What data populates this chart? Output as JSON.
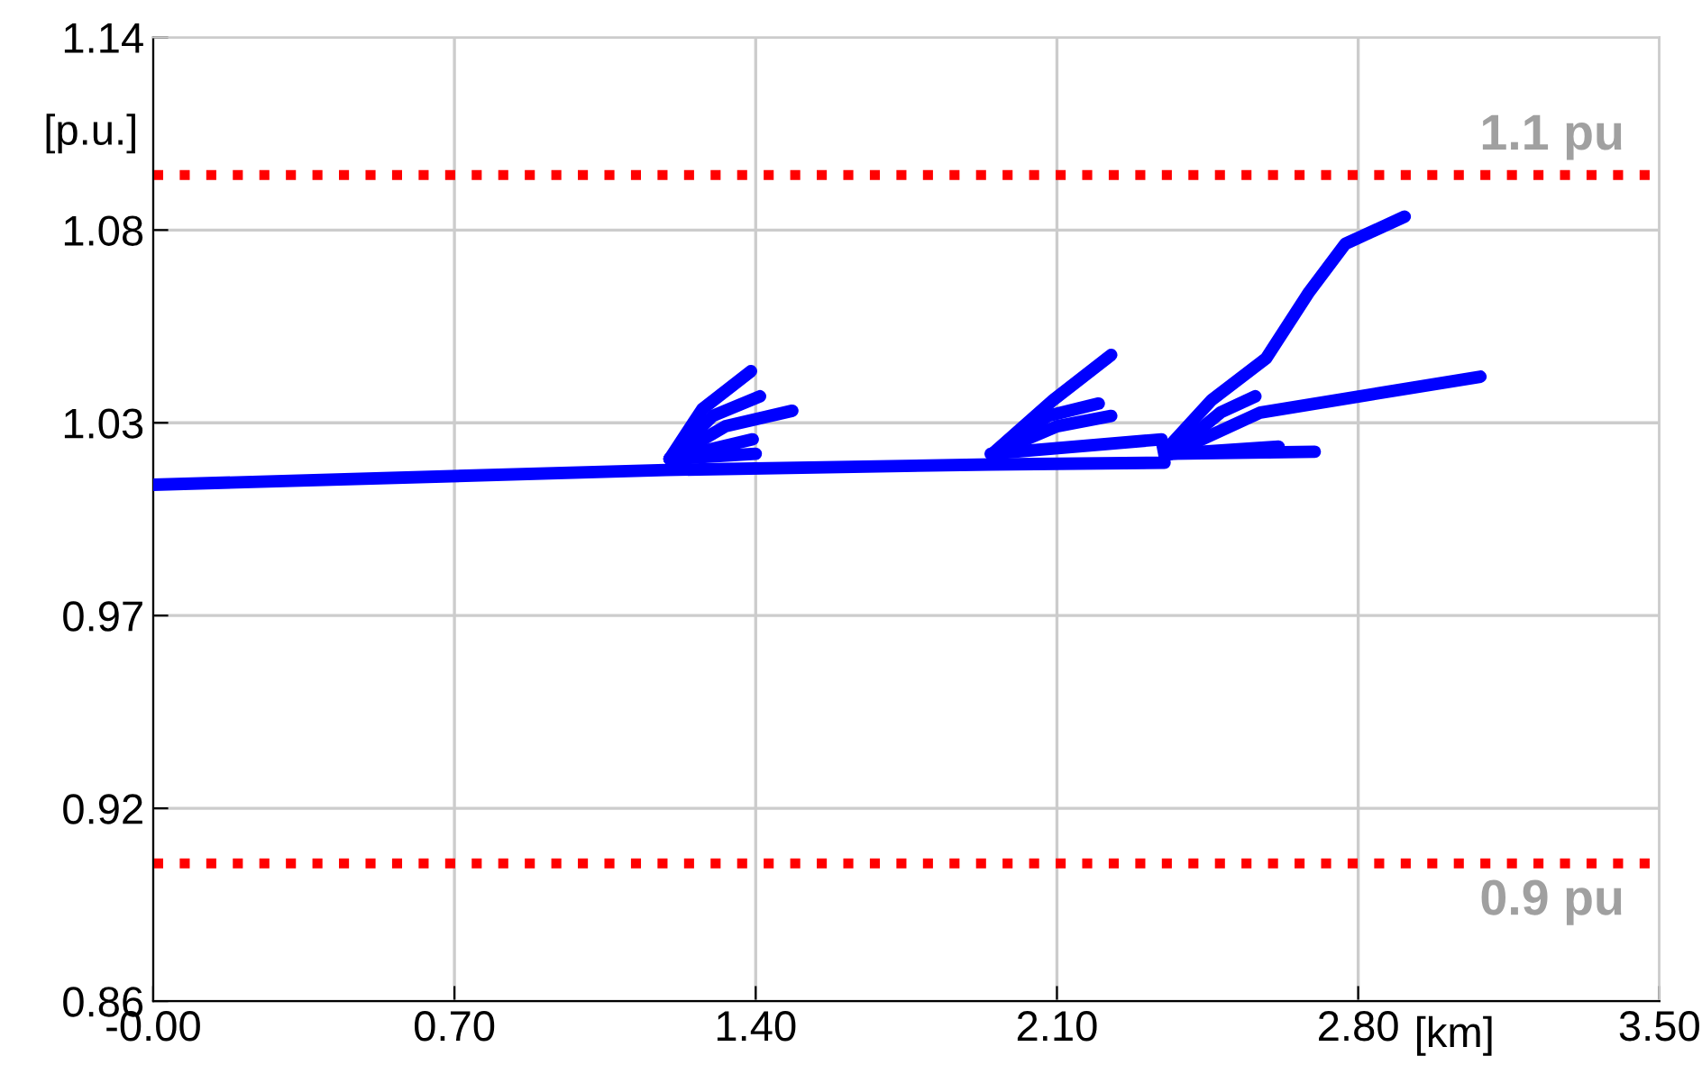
{
  "chart_data": {
    "type": "line",
    "xlabel": "[km]",
    "ylabel": "[p.u.]",
    "xlim": [
      0,
      3.5
    ],
    "xticks": [
      {
        "value": 0,
        "label": "-0.00"
      },
      {
        "value": 0.7,
        "label": "0.70"
      },
      {
        "value": 1.4,
        "label": "1.40"
      },
      {
        "value": 2.1,
        "label": "2.10"
      },
      {
        "value": 2.8,
        "label": "2.80"
      },
      {
        "value": 3.5,
        "label": "3.50"
      }
    ],
    "ylim": [
      0.86,
      1.14
    ],
    "yticks": [
      {
        "value": 0.86,
        "label": "0.86"
      },
      {
        "value": 0.916,
        "label": "0.92"
      },
      {
        "value": 0.972,
        "label": "0.97"
      },
      {
        "value": 1.028,
        "label": "1.03"
      },
      {
        "value": 1.084,
        "label": "1.08"
      },
      {
        "value": 1.14,
        "label": "1.14"
      }
    ],
    "grid": true,
    "legend": false,
    "marker": "none",
    "line_style": "solid",
    "ref_lines": [
      {
        "axis": "y",
        "value": 1.1,
        "label": "1.1 pu",
        "color": "#ff0000",
        "line_style": "dotted"
      },
      {
        "axis": "y",
        "value": 0.9,
        "label": "0.9 pu",
        "color": "#ff0000",
        "line_style": "dotted"
      }
    ],
    "series": [
      {
        "color": "#0000ff",
        "x": [
          0,
          1.192,
          1.946,
          2.35
        ],
        "values": [
          1.01,
          1.0143,
          1.0159,
          1.0164
        ]
      },
      {
        "color": "#0000ff",
        "x": [
          1.946,
          2.343,
          2.351
        ],
        "values": [
          1.019,
          1.0232,
          1.018
        ]
      },
      {
        "color": "#0000ff",
        "x": [
          1.2,
          1.276,
          1.389
        ],
        "values": [
          1.0175,
          1.032,
          1.043
        ]
      },
      {
        "color": "#0000ff",
        "x": [
          1.2,
          1.3,
          1.41
        ],
        "values": [
          1.0175,
          1.03,
          1.0357
        ]
      },
      {
        "color": "#0000ff",
        "x": [
          1.2,
          1.33,
          1.485
        ],
        "values": [
          1.0175,
          1.027,
          1.0315
        ]
      },
      {
        "color": "#0000ff",
        "x": [
          1.2,
          1.393
        ],
        "values": [
          1.0175,
          1.0232
        ]
      },
      {
        "color": "#0000ff",
        "x": [
          1.2,
          1.4
        ],
        "values": [
          1.0175,
          1.019
        ]
      },
      {
        "color": "#0000ff",
        "x": [
          1.95,
          2.092,
          2.226
        ],
        "values": [
          1.019,
          1.0347,
          1.0477
        ]
      },
      {
        "color": "#0000ff",
        "x": [
          1.95,
          2.08,
          2.197
        ],
        "values": [
          1.019,
          1.03,
          1.0336
        ]
      },
      {
        "color": "#0000ff",
        "x": [
          1.95,
          2.1,
          2.226
        ],
        "values": [
          1.019,
          1.027,
          1.03
        ]
      },
      {
        "color": "#0000ff",
        "x": [
          2.364,
          2.46,
          2.586,
          2.686,
          2.77,
          2.908
        ],
        "values": [
          1.0216,
          1.0347,
          1.0467,
          1.066,
          1.08,
          1.0879
        ]
      },
      {
        "color": "#0000ff",
        "x": [
          2.364,
          2.573,
          3.084
        ],
        "values": [
          1.019,
          1.031,
          1.0414
        ]
      },
      {
        "color": "#0000ff",
        "x": [
          2.364,
          2.48,
          2.561
        ],
        "values": [
          1.019,
          1.031,
          1.0357
        ]
      },
      {
        "color": "#0000ff",
        "x": [
          2.364,
          2.615
        ],
        "values": [
          1.019,
          1.0211
        ]
      },
      {
        "color": "#0000ff",
        "x": [
          2.364,
          2.699
        ],
        "values": [
          1.019,
          1.0196
        ]
      }
    ]
  }
}
